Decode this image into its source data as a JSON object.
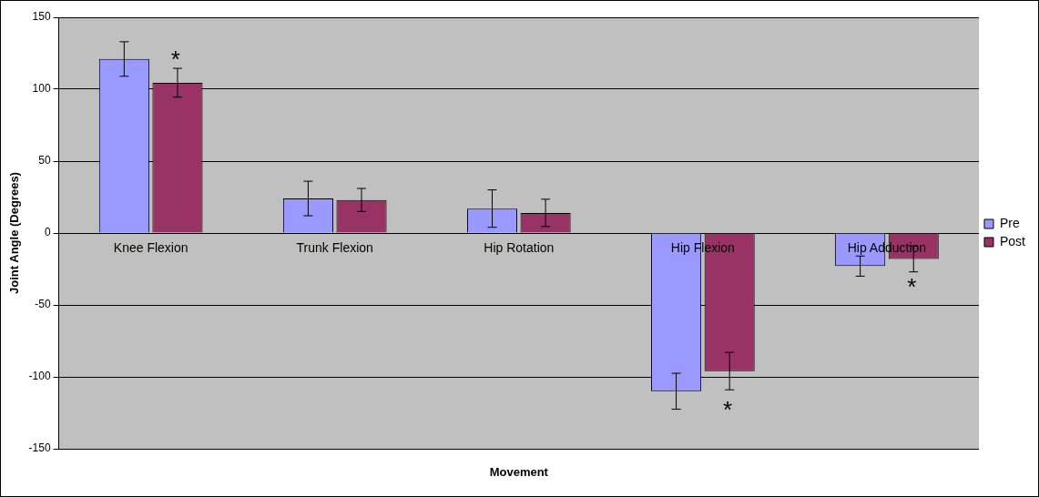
{
  "chart_data": {
    "type": "bar",
    "xlabel": "Movement",
    "ylabel": "Joint Angle (Degrees)",
    "categories": [
      "Knee Flexion",
      "Trunk Flexion",
      "Hip Rotation",
      "Hip Flexion",
      "Hip Adduction"
    ],
    "series": [
      {
        "name": "Pre",
        "color": "#9999ff",
        "values": [
          121,
          24,
          17,
          -110,
          -23
        ],
        "errors": [
          12,
          12,
          13,
          12.5,
          7
        ]
      },
      {
        "name": "Post",
        "color": "#993366",
        "values": [
          104.5,
          23,
          14,
          -96,
          -18
        ],
        "errors": [
          10,
          8,
          9.5,
          13,
          9
        ]
      }
    ],
    "ylim": [
      -150,
      150
    ],
    "yticks": [
      -150,
      -100,
      -50,
      0,
      50,
      100,
      150
    ],
    "grid": "y",
    "legend": "right",
    "annotations": [
      "*",
      "*",
      "*"
    ]
  }
}
